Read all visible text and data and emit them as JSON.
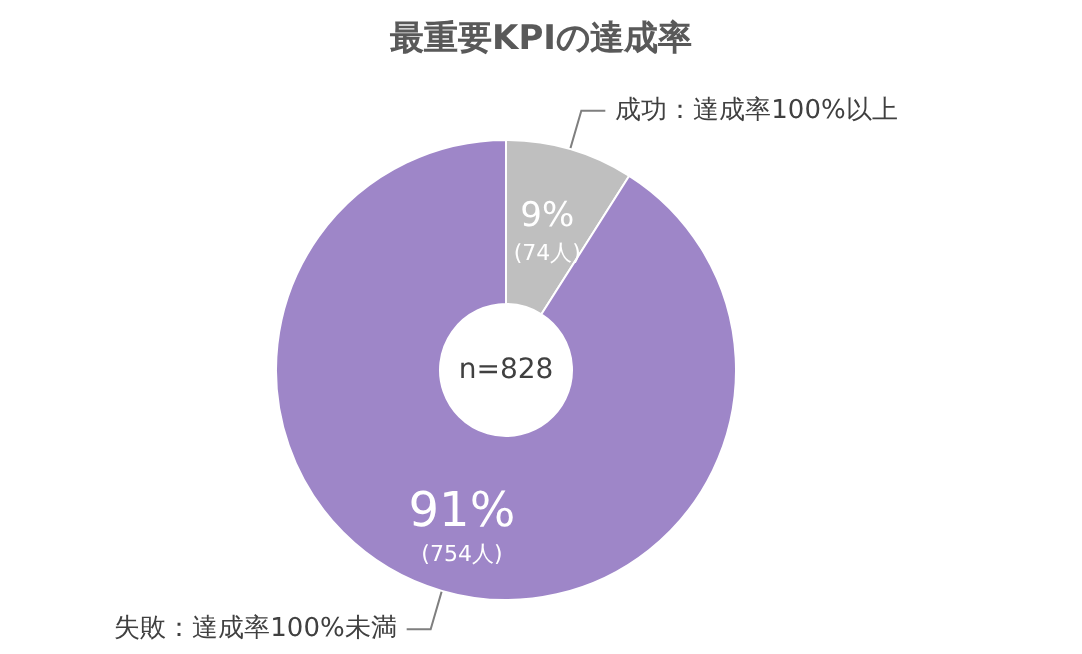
{
  "chart_data": {
    "type": "donut",
    "title": "最重要KPIの達成率",
    "categories": [
      "成功：達成率100%以上",
      "失敗：達成率100%未満"
    ],
    "values": [
      9,
      91
    ],
    "colors": [
      "#bfbfbf",
      "#9e86c8"
    ],
    "value_labels": [
      "9%\n(74人)",
      "91%\n(754人)"
    ],
    "annotations": [
      "n=828"
    ],
    "legend": false
  }
}
